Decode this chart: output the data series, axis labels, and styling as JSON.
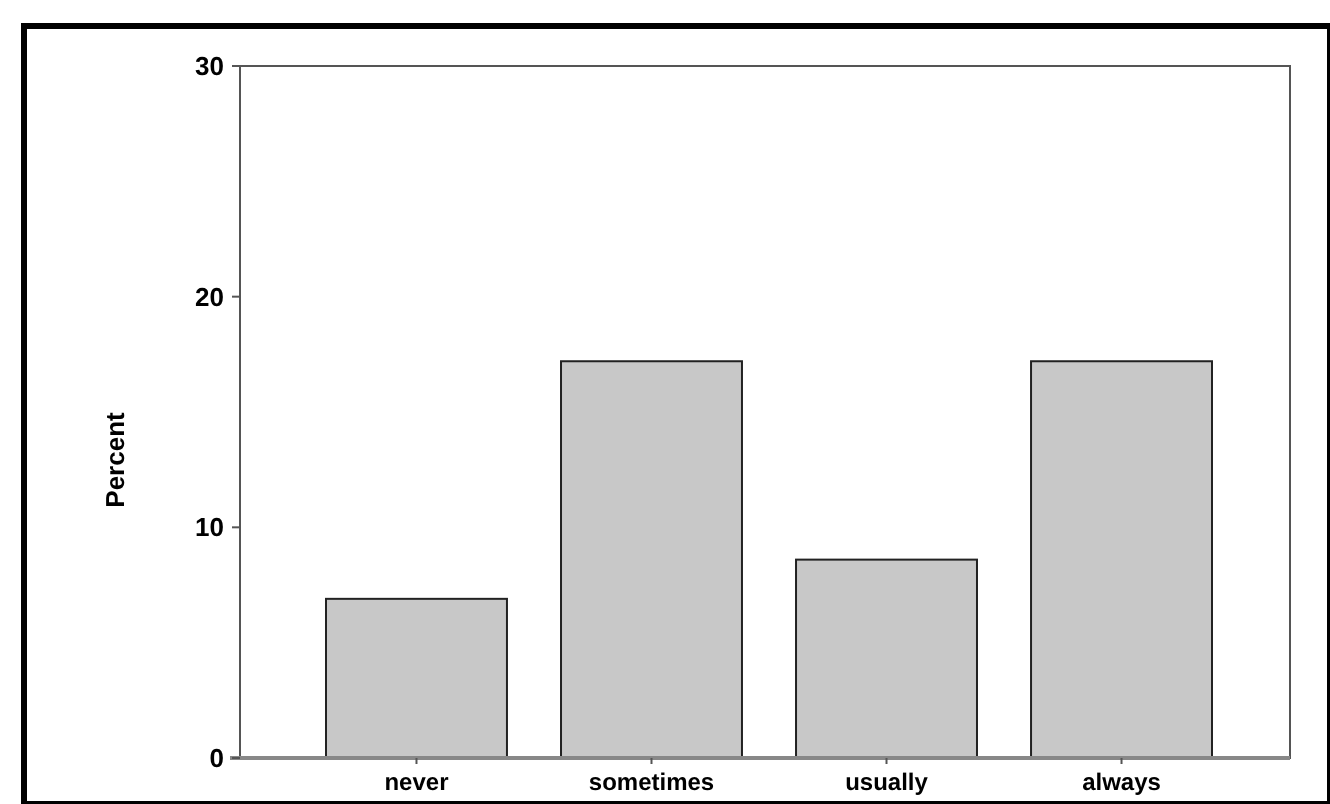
{
  "chart_data": {
    "type": "bar",
    "ylabel": "Percent",
    "categories": [
      "never",
      "sometimes",
      "usually",
      "always"
    ],
    "values": [
      6.9,
      17.2,
      8.6,
      17.2
    ],
    "color": "#c8c8c8",
    "ylim": [
      0,
      30
    ],
    "yticks": [
      0,
      10,
      20,
      30
    ],
    "grid": false
  }
}
